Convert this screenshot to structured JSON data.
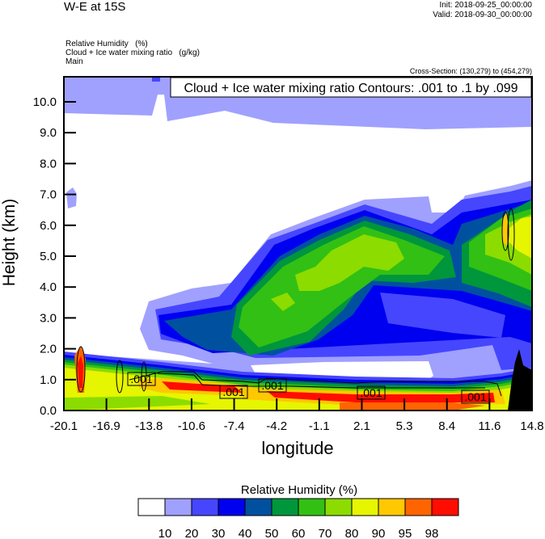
{
  "header": {
    "title": "W-E at 15S",
    "init": "Init: 2018-09-25_00:00:00",
    "valid": "Valid: 2018-09-30_00:00:00",
    "fields": [
      "Relative Humidity   (%)",
      "Cloud + Ice water mixing ratio   (g/kg)",
      "Main"
    ],
    "cross_section": "Cross-Section: (130,279) to (454,279)"
  },
  "chart_data": {
    "type": "contour",
    "contour_info": "Cloud + Ice water mixing ratio Contours: .001 to .1 by .099",
    "contour_line_labels": [
      ".001",
      ".001",
      ".001",
      ".001",
      ".001"
    ],
    "ylabel": "Height (km)",
    "xlabel": "longitude",
    "ylim": [
      0,
      10.8
    ],
    "xlim": [
      -20.1,
      14.8
    ],
    "yticks": [
      "0.0",
      "1.0",
      "2.0",
      "3.0",
      "4.0",
      "5.0",
      "6.0",
      "7.0",
      "8.0",
      "9.0",
      "10.0"
    ],
    "xticks": [
      "-20.1",
      "-16.9",
      "-13.8",
      "-10.6",
      "-7.4",
      "-4.2",
      "-1.1",
      "2.1",
      "5.3",
      "8.4",
      "11.6",
      "14.8"
    ],
    "colorbar": {
      "title": "Relative Humidity  (%)",
      "levels": [
        "10",
        "20",
        "30",
        "40",
        "50",
        "60",
        "70",
        "80",
        "90",
        "95",
        "98"
      ],
      "colors": [
        "#ffffff",
        "#a0a0ff",
        "#4646ff",
        "#0000f0",
        "#0050a0",
        "#00963c",
        "#32c014",
        "#8cdc00",
        "#e6f500",
        "#ffc800",
        "#ff6400",
        "#ff0d00"
      ]
    },
    "terrain_color": "#000000"
  }
}
